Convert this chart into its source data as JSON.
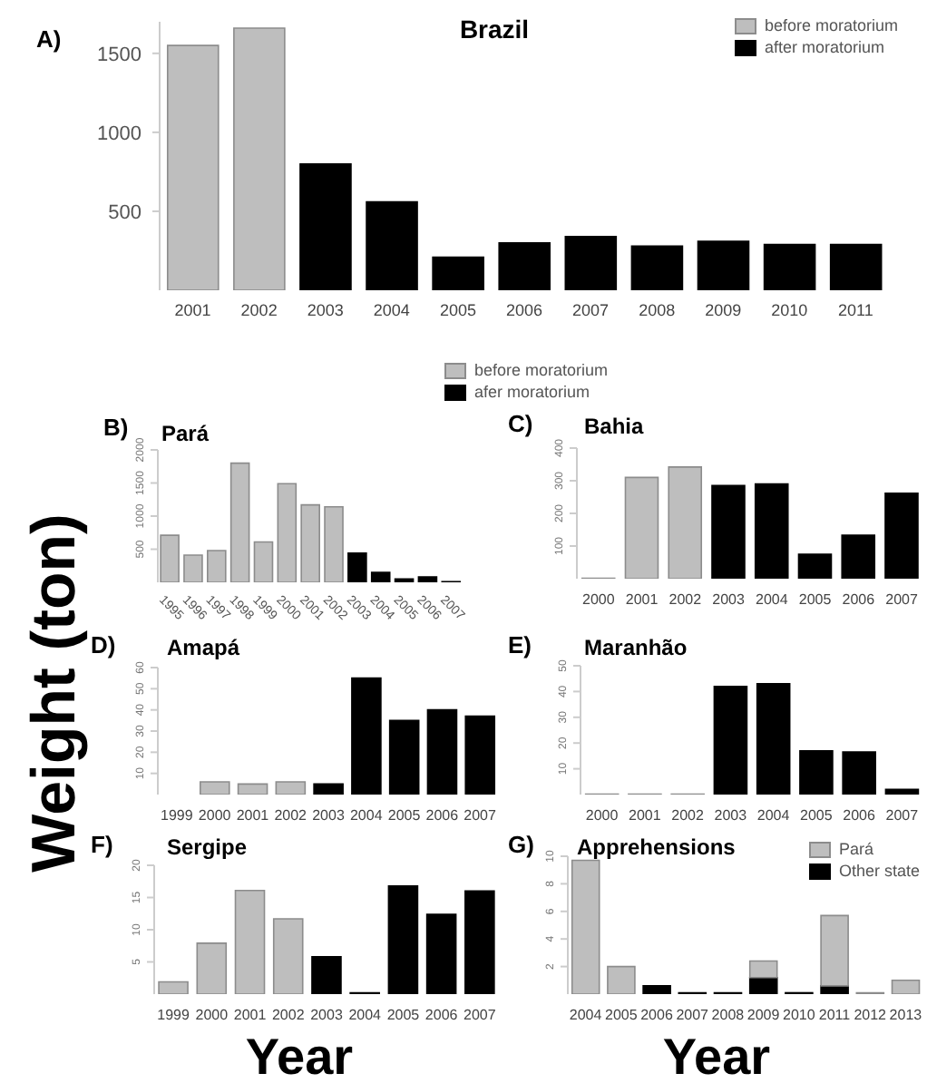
{
  "chart_data": [
    {
      "type": "bar",
      "title": "Brazil",
      "annotations": [
        "A)"
      ],
      "categories": [
        "2001",
        "2002",
        "2003",
        "2004",
        "2005",
        "2006",
        "2007",
        "2008",
        "2009",
        "2010",
        "2011"
      ],
      "stacked": true,
      "legend": "top right",
      "ylim": [
        0,
        1700
      ],
      "yticks": [
        500,
        1000,
        1500
      ],
      "grid": false,
      "series": [
        {
          "name": "before moratorium",
          "color": "#bebebe",
          "values": [
            1550,
            1660,
            null,
            null,
            null,
            null,
            null,
            null,
            null,
            null,
            null
          ]
        },
        {
          "name": "after moratorium",
          "color": "#000000",
          "values": [
            null,
            null,
            800,
            560,
            210,
            300,
            340,
            280,
            310,
            290,
            290
          ]
        }
      ]
    },
    {
      "type": "bar",
      "title": "Pará",
      "ylabel": "Weight (ton)",
      "annotations": [
        "B)"
      ],
      "categories": [
        "1995",
        "1996",
        "1997",
        "1998",
        "1999",
        "2000",
        "2001",
        "2002",
        "2003",
        "2004",
        "2005",
        "2006",
        "2007"
      ],
      "stacked": true,
      "legend": "top right",
      "ylim": [
        0,
        2000
      ],
      "yticks": [
        500,
        1000,
        1500,
        2000
      ],
      "grid": false,
      "series": [
        {
          "name": "before moratorium",
          "color": "#bebebe",
          "values": [
            710,
            410,
            480,
            1800,
            610,
            1490,
            1170,
            1140,
            null,
            null,
            null,
            null,
            null
          ]
        },
        {
          "name": "afer moratorium",
          "color": "#000000",
          "values": [
            null,
            null,
            null,
            null,
            null,
            null,
            null,
            null,
            440,
            150,
            50,
            80,
            10
          ]
        }
      ]
    },
    {
      "type": "bar",
      "title": "Bahia",
      "annotations": [
        "C)"
      ],
      "categories": [
        "2000",
        "2001",
        "2002",
        "2003",
        "2004",
        "2005",
        "2006",
        "2007"
      ],
      "stacked": true,
      "ylim": [
        0,
        400
      ],
      "yticks": [
        100,
        200,
        300,
        400
      ],
      "grid": false,
      "series": [
        {
          "color": "#bebebe",
          "values": [
            1,
            310,
            342,
            null,
            null,
            null,
            null,
            null
          ]
        },
        {
          "color": "#000000",
          "values": [
            null,
            null,
            null,
            285,
            290,
            75,
            133,
            262
          ]
        }
      ]
    },
    {
      "type": "bar",
      "title": "Amapá",
      "annotations": [
        "D)"
      ],
      "categories": [
        "1999",
        "2000",
        "2001",
        "2002",
        "2003",
        "2004",
        "2005",
        "2006",
        "2007"
      ],
      "stacked": true,
      "ylim": [
        0,
        60
      ],
      "yticks": [
        10,
        20,
        30,
        40,
        50,
        60
      ],
      "grid": false,
      "series": [
        {
          "color": "#bebebe",
          "values": [
            0,
            6,
            5,
            6,
            null,
            null,
            null,
            null,
            null
          ]
        },
        {
          "color": "#000000",
          "values": [
            null,
            null,
            null,
            null,
            5,
            55,
            35,
            40,
            37
          ]
        }
      ]
    },
    {
      "type": "bar",
      "title": "Maranhão",
      "annotations": [
        "E)"
      ],
      "categories": [
        "2000",
        "2001",
        "2002",
        "2003",
        "2004",
        "2005",
        "2006",
        "2007"
      ],
      "stacked": true,
      "ylim": [
        0,
        50
      ],
      "yticks": [
        10,
        20,
        30,
        40,
        50
      ],
      "grid": false,
      "series": [
        {
          "color": "#bebebe",
          "values": [
            0.2,
            0.2,
            0.2,
            null,
            null,
            null,
            null,
            null
          ]
        },
        {
          "color": "#000000",
          "values": [
            null,
            null,
            null,
            42,
            43,
            17,
            16.5,
            2
          ]
        }
      ]
    },
    {
      "type": "bar",
      "title": "Sergipe",
      "xlabel": "Year",
      "annotations": [
        "F)"
      ],
      "categories": [
        "1999",
        "2000",
        "2001",
        "2002",
        "2003",
        "2004",
        "2005",
        "2006",
        "2007"
      ],
      "stacked": true,
      "ylim": [
        0,
        20
      ],
      "yticks": [
        5,
        10,
        15,
        20
      ],
      "grid": false,
      "series": [
        {
          "color": "#bebebe",
          "values": [
            1.9,
            7.9,
            16.1,
            11.7,
            null,
            null,
            null,
            null,
            null
          ]
        },
        {
          "color": "#000000",
          "values": [
            null,
            null,
            null,
            null,
            5.8,
            0.2,
            16.8,
            12.4,
            16
          ]
        }
      ]
    },
    {
      "type": "bar",
      "title": "Apprehensions",
      "xlabel": "Year",
      "annotations": [
        "G)"
      ],
      "categories": [
        "2004",
        "2005",
        "2006",
        "2007",
        "2008",
        "2009",
        "2010",
        "2011",
        "2012",
        "2013"
      ],
      "stacked": true,
      "legend": "top right",
      "ylim": [
        0,
        10
      ],
      "yticks": [
        2,
        4,
        6,
        8,
        10
      ],
      "grid": false,
      "series": [
        {
          "name": "Other state",
          "color": "#000000",
          "values": [
            0,
            0,
            0.6,
            0.1,
            0.1,
            1.2,
            0.1,
            0.6,
            0,
            0
          ]
        },
        {
          "name": "Pará",
          "color": "#bebebe",
          "values": [
            9.7,
            2,
            0,
            0,
            0,
            1.2,
            0,
            5.1,
            0.1,
            1
          ]
        }
      ]
    }
  ]
}
